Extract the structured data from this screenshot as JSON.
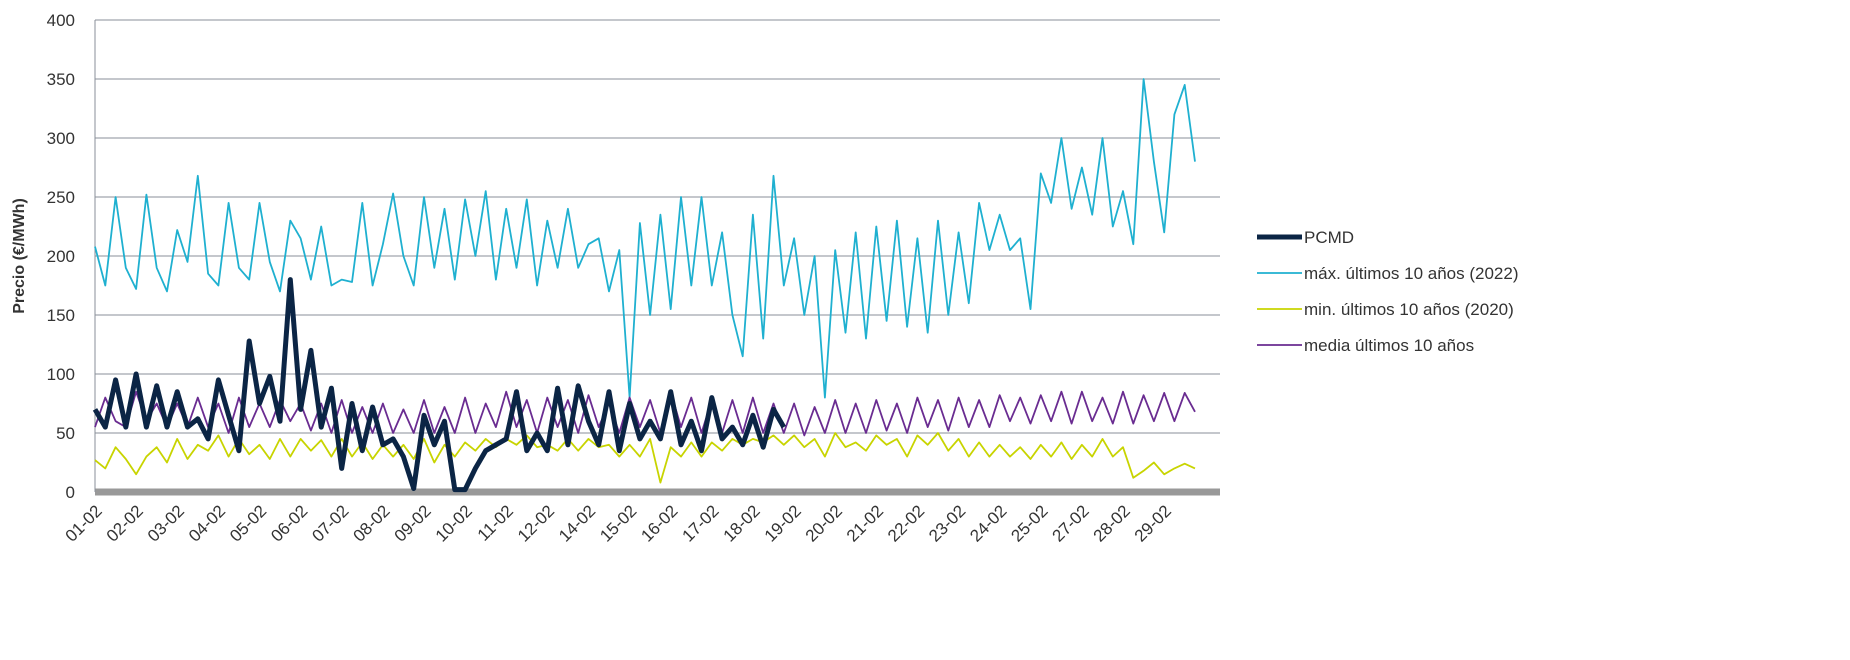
{
  "chart_data": {
    "type": "line",
    "y_label": "Precio (€/MWh)",
    "ylim": [
      0,
      400
    ],
    "yticks": [
      0,
      50,
      100,
      150,
      200,
      250,
      300,
      350,
      400
    ],
    "grid": true,
    "legend": "right",
    "categories": [
      "01-02",
      null,
      null,
      null,
      "02-02",
      null,
      null,
      null,
      "03-02",
      null,
      null,
      null,
      "04-02",
      null,
      null,
      null,
      "05-02",
      null,
      null,
      null,
      "06-02",
      null,
      null,
      null,
      "07-02",
      null,
      null,
      null,
      "08-02",
      null,
      null,
      null,
      "09-02",
      null,
      null,
      null,
      "10-02",
      null,
      null,
      null,
      "11-02",
      null,
      null,
      null,
      "12-02",
      null,
      null,
      null,
      "14-02",
      null,
      null,
      null,
      "15-02",
      null,
      null,
      null,
      "16-02",
      null,
      null,
      null,
      "17-02",
      null,
      null,
      null,
      "18-02",
      null,
      null,
      null,
      "19-02",
      null,
      null,
      null,
      "20-02",
      null,
      null,
      null,
      "21-02",
      null,
      null,
      null,
      "22-02",
      null,
      null,
      null,
      "23-02",
      null,
      null,
      null,
      "24-02",
      null,
      null,
      null,
      "25-02",
      null,
      null,
      null,
      "27-02",
      null,
      null,
      null,
      "28-02",
      null,
      null,
      null,
      "29-02",
      null,
      null,
      null
    ],
    "series": [
      {
        "name": "PCMD",
        "color": "#0b2545",
        "width": 5,
        "values": [
          70,
          55,
          95,
          55,
          100,
          55,
          90,
          55,
          85,
          55,
          62,
          45,
          95,
          65,
          35,
          128,
          75,
          98,
          60,
          180,
          70,
          120,
          55,
          88,
          20,
          75,
          35,
          72,
          40,
          45,
          30,
          3,
          65,
          40,
          60,
          2,
          2,
          20,
          35,
          40,
          45,
          85,
          35,
          50,
          35,
          88,
          40,
          90,
          60,
          40,
          85,
          35,
          75,
          45,
          60,
          45,
          85,
          40,
          60,
          35,
          80,
          45,
          55,
          40,
          65,
          38,
          70,
          55,
          null,
          null,
          null,
          null,
          null,
          null,
          null,
          null,
          null,
          null,
          null,
          null,
          null,
          null,
          null,
          null,
          null,
          null,
          null,
          null,
          null,
          null,
          null,
          null,
          null,
          null,
          null,
          null,
          null,
          null,
          null,
          null,
          null,
          null,
          null,
          null,
          null,
          null,
          null,
          null
        ]
      },
      {
        "name": "máx. últimos 10 años (2022)",
        "color": "#1fb0d0",
        "width": 1.8,
        "values": [
          208,
          175,
          250,
          190,
          172,
          252,
          190,
          170,
          222,
          195,
          268,
          185,
          175,
          245,
          190,
          180,
          245,
          195,
          170,
          230,
          215,
          180,
          225,
          175,
          180,
          178,
          245,
          175,
          210,
          253,
          200,
          175,
          250,
          190,
          240,
          180,
          248,
          200,
          255,
          180,
          240,
          190,
          248,
          175,
          230,
          190,
          240,
          190,
          210,
          215,
          170,
          205,
          80,
          228,
          150,
          235,
          155,
          250,
          175,
          250,
          175,
          220,
          150,
          115,
          235,
          130,
          268,
          175,
          215,
          150,
          200,
          80,
          205,
          135,
          220,
          130,
          225,
          145,
          230,
          140,
          215,
          135,
          230,
          150,
          220,
          160,
          245,
          205,
          235,
          205,
          215,
          155,
          270,
          245,
          300,
          240,
          275,
          235,
          300,
          225,
          255,
          210,
          350,
          280,
          220,
          320,
          345,
          280
        ]
      },
      {
        "name": "min. últimos 10 años (2020)",
        "color": "#c8d400",
        "width": 1.8,
        "values": [
          27,
          20,
          38,
          28,
          15,
          30,
          38,
          25,
          45,
          28,
          40,
          35,
          48,
          30,
          45,
          32,
          40,
          28,
          45,
          30,
          45,
          35,
          44,
          30,
          45,
          30,
          42,
          28,
          40,
          30,
          40,
          28,
          45,
          25,
          40,
          30,
          42,
          35,
          45,
          38,
          45,
          40,
          48,
          38,
          40,
          35,
          45,
          35,
          45,
          38,
          40,
          30,
          40,
          30,
          45,
          8,
          38,
          30,
          42,
          30,
          42,
          35,
          45,
          40,
          45,
          42,
          48,
          40,
          48,
          38,
          45,
          30,
          50,
          38,
          42,
          35,
          48,
          40,
          45,
          30,
          48,
          40,
          50,
          35,
          45,
          30,
          42,
          30,
          40,
          30,
          38,
          28,
          40,
          30,
          42,
          28,
          40,
          30,
          45,
          30,
          38,
          12,
          18,
          25,
          15,
          20,
          24,
          20
        ]
      },
      {
        "name": "media últimos 10 años",
        "color": "#6a2c91",
        "width": 1.8,
        "values": [
          55,
          80,
          60,
          55,
          85,
          60,
          75,
          55,
          75,
          55,
          80,
          55,
          75,
          50,
          80,
          55,
          75,
          55,
          78,
          60,
          75,
          52,
          75,
          50,
          78,
          50,
          72,
          50,
          75,
          50,
          70,
          50,
          78,
          50,
          72,
          50,
          80,
          50,
          75,
          55,
          85,
          55,
          78,
          50,
          80,
          55,
          78,
          50,
          82,
          55,
          75,
          50,
          80,
          55,
          78,
          50,
          85,
          55,
          80,
          50,
          78,
          50,
          78,
          50,
          80,
          50,
          75,
          50,
          75,
          48,
          72,
          50,
          78,
          50,
          75,
          50,
          78,
          52,
          75,
          50,
          80,
          55,
          78,
          52,
          80,
          55,
          78,
          55,
          82,
          60,
          80,
          58,
          82,
          60,
          85,
          58,
          85,
          60,
          80,
          58,
          85,
          58,
          82,
          60,
          84,
          60,
          84,
          68
        ]
      }
    ]
  }
}
